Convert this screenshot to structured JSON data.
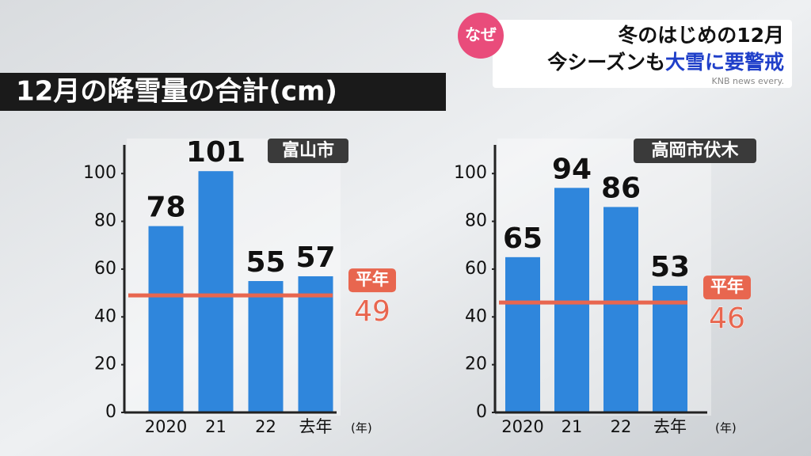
{
  "header": {
    "badge": "なぜ",
    "line1": "冬のはじめの12月",
    "line2a": "今シーズンも",
    "line2b": "大雪に要警戒",
    "credit": "KNB news every."
  },
  "title": "12月の降雪量の合計(cm)",
  "chart_data": [
    {
      "type": "bar",
      "title": "富山市",
      "categories": [
        "2020",
        "21",
        "22",
        "去年"
      ],
      "x_unit": "(年)",
      "values": [
        78,
        101,
        55,
        57
      ],
      "color": "#2f86dc",
      "ylim": [
        0,
        112
      ],
      "yticks": [
        0,
        20,
        40,
        60,
        80,
        100
      ],
      "average": {
        "label": "平年",
        "value": 49,
        "color": "#e8664f"
      }
    },
    {
      "type": "bar",
      "title": "高岡市伏木",
      "categories": [
        "2020",
        "21",
        "22",
        "去年"
      ],
      "x_unit": "(年)",
      "values": [
        65,
        94,
        86,
        53
      ],
      "color": "#2f86dc",
      "ylim": [
        0,
        112
      ],
      "yticks": [
        0,
        20,
        40,
        60,
        80,
        100
      ],
      "average": {
        "label": "平年",
        "value": 46,
        "color": "#e8664f"
      }
    }
  ]
}
